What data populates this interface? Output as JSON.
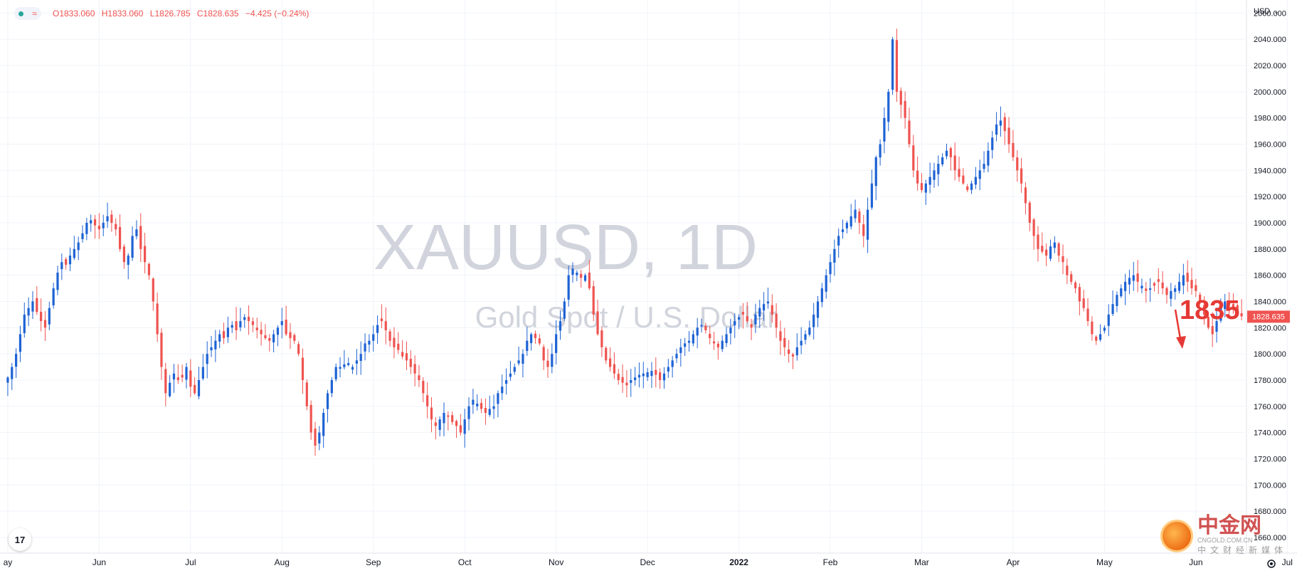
{
  "symbol_watermark": "XAUUSD, 1D",
  "description_watermark": "Gold Spot / U.S. Dollar",
  "currency": "USD",
  "ohlc": {
    "open": "O1833.060",
    "high": "H1833.060",
    "low": "L1826.785",
    "close": "C1828.635",
    "change": "−4.425 (−0.24%)"
  },
  "last_price_label": "1828.635",
  "annotation": "1835",
  "logo_text": "17",
  "watermark": {
    "cn": "中金网",
    "domain": "CNGOLD.COM.CN",
    "sub": "中文财经新媒体"
  },
  "colors": {
    "up": "#1e63d4",
    "down": "#ef5350",
    "grid": "#f0f3fa",
    "axis_text": "#131722",
    "annotation": "#e53935"
  },
  "chart_data": {
    "type": "candlestick",
    "ylim": [
      1648,
      2070
    ],
    "y_ticks": [
      1660,
      1680,
      1700,
      1720,
      1740,
      1760,
      1780,
      1800,
      1820,
      1840,
      1860,
      1880,
      1900,
      1920,
      1940,
      1960,
      1980,
      2000,
      2020,
      2040,
      2060
    ],
    "y_tick_labels": [
      "1660.000",
      "1680.000",
      "1700.000",
      "1720.000",
      "1740.000",
      "1760.000",
      "1780.000",
      "1800.000",
      "1820.000",
      "1840.000",
      "1860.000",
      "1880.000",
      "1900.000",
      "1920.000",
      "1940.000",
      "1960.000",
      "1980.000",
      "2000.000",
      "2020.000",
      "2040.000",
      "2060.000"
    ],
    "x_labels": [
      {
        "label": "ay",
        "bar": 0
      },
      {
        "label": "Jun",
        "bar": 22
      },
      {
        "label": "Jul",
        "bar": 44
      },
      {
        "label": "Aug",
        "bar": 66
      },
      {
        "label": "Sep",
        "bar": 88
      },
      {
        "label": "Oct",
        "bar": 110
      },
      {
        "label": "Nov",
        "bar": 132
      },
      {
        "label": "Dec",
        "bar": 154
      },
      {
        "label": "2022",
        "bar": 176
      },
      {
        "label": "Feb",
        "bar": 198
      },
      {
        "label": "Mar",
        "bar": 220
      },
      {
        "label": "Apr",
        "bar": 242
      },
      {
        "label": "May",
        "bar": 264
      },
      {
        "label": "Jun",
        "bar": 286
      },
      {
        "label": "Jul",
        "bar": 308
      }
    ],
    "closes": [
      1782,
      1790,
      1800,
      1815,
      1830,
      1835,
      1840,
      1832,
      1825,
      1820,
      1835,
      1850,
      1862,
      1870,
      1868,
      1875,
      1880,
      1885,
      1892,
      1900,
      1902,
      1898,
      1895,
      1900,
      1905,
      1900,
      1895,
      1880,
      1870,
      1875,
      1890,
      1895,
      1880,
      1870,
      1860,
      1840,
      1815,
      1790,
      1770,
      1778,
      1785,
      1780,
      1782,
      1790,
      1775,
      1770,
      1780,
      1790,
      1800,
      1805,
      1810,
      1815,
      1812,
      1820,
      1822,
      1818,
      1825,
      1828,
      1825,
      1822,
      1818,
      1815,
      1812,
      1810,
      1815,
      1820,
      1825,
      1815,
      1812,
      1810,
      1800,
      1780,
      1760,
      1740,
      1730,
      1740,
      1755,
      1770,
      1780,
      1790,
      1790,
      1792,
      1793,
      1790,
      1795,
      1800,
      1808,
      1810,
      1815,
      1822,
      1825,
      1818,
      1810,
      1805,
      1803,
      1798,
      1795,
      1790,
      1785,
      1780,
      1770,
      1760,
      1750,
      1745,
      1750,
      1755,
      1752,
      1748,
      1745,
      1740,
      1750,
      1760,
      1765,
      1762,
      1758,
      1755,
      1758,
      1760,
      1770,
      1775,
      1780,
      1785,
      1790,
      1795,
      1800,
      1810,
      1815,
      1812,
      1808,
      1795,
      1790,
      1800,
      1815,
      1825,
      1840,
      1860,
      1865,
      1862,
      1858,
      1860,
      1850,
      1830,
      1815,
      1805,
      1795,
      1790,
      1785,
      1780,
      1778,
      1776,
      1780,
      1782,
      1784,
      1785,
      1786,
      1787,
      1784,
      1780,
      1785,
      1790,
      1795,
      1800,
      1805,
      1808,
      1810,
      1815,
      1820,
      1822,
      1818,
      1812,
      1808,
      1805,
      1810,
      1815,
      1820,
      1825,
      1828,
      1830,
      1825,
      1820,
      1830,
      1835,
      1838,
      1840,
      1830,
      1820,
      1810,
      1805,
      1800,
      1798,
      1805,
      1810,
      1815,
      1820,
      1830,
      1840,
      1850,
      1860,
      1870,
      1880,
      1890,
      1895,
      1900,
      1905,
      1910,
      1900,
      1890,
      1910,
      1930,
      1950,
      1960,
      1980,
      2000,
      2040,
      2000,
      1990,
      1980,
      1960,
      1940,
      1930,
      1925,
      1930,
      1935,
      1940,
      1945,
      1950,
      1955,
      1950,
      1940,
      1935,
      1930,
      1925,
      1930,
      1935,
      1940,
      1945,
      1955,
      1965,
      1975,
      1978,
      1970,
      1960,
      1950,
      1940,
      1930,
      1915,
      1900,
      1890,
      1880,
      1878,
      1875,
      1882,
      1885,
      1875,
      1870,
      1860,
      1855,
      1850,
      1840,
      1835,
      1825,
      1815,
      1810,
      1815,
      1820,
      1830,
      1838,
      1845,
      1850,
      1855,
      1858,
      1860,
      1855,
      1852,
      1848,
      1850,
      1852,
      1855,
      1850,
      1845,
      1848,
      1850,
      1855,
      1860,
      1855,
      1850,
      1848,
      1840,
      1830,
      1820,
      1815,
      1825,
      1835,
      1840,
      1838,
      1835,
      1830,
      1828.635
    ]
  }
}
